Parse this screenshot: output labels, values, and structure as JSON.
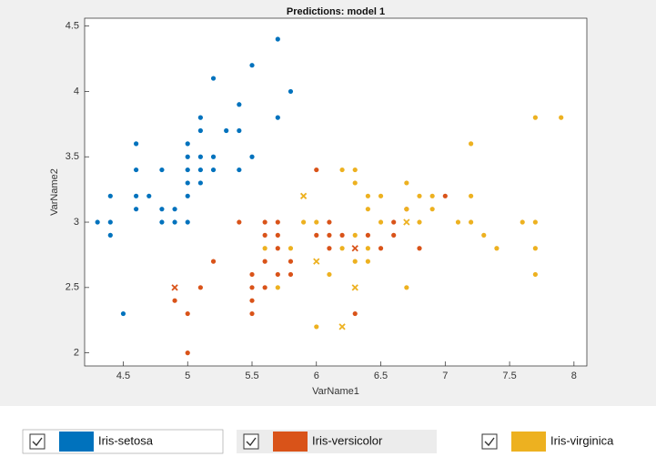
{
  "chart_data": {
    "type": "scatter",
    "title": "Predictions: model 1",
    "x_label": "VarName1",
    "y_label": "VarName2",
    "xlim": [
      4.2,
      8.1
    ],
    "ylim": [
      1.9,
      4.56
    ],
    "xticks": [
      4.5,
      5,
      5.5,
      6,
      6.5,
      7,
      7.5,
      8
    ],
    "yticks": [
      2,
      2.5,
      3,
      3.5,
      4,
      4.5
    ],
    "grid": false,
    "series": [
      {
        "name": "Iris-setosa",
        "color": "#0072bd",
        "x": [
          4.3,
          4.4,
          4.4,
          4.4,
          4.5,
          4.6,
          4.6,
          4.6,
          4.6,
          4.7,
          4.8,
          4.8,
          4.8,
          4.9,
          4.9,
          5.0,
          5.0,
          5.0,
          5.0,
          5.0,
          5.0,
          5.1,
          5.1,
          5.1,
          5.1,
          5.1,
          5.2,
          5.2,
          5.2,
          5.3,
          5.4,
          5.4,
          5.4,
          5.5,
          5.5,
          5.7,
          5.7,
          5.8
        ],
        "values": [
          3.0,
          3.0,
          2.9,
          3.2,
          2.3,
          3.1,
          3.2,
          3.4,
          3.6,
          3.2,
          3.0,
          3.1,
          3.4,
          3.0,
          3.1,
          3.0,
          3.2,
          3.3,
          3.4,
          3.5,
          3.6,
          3.3,
          3.4,
          3.5,
          3.7,
          3.8,
          3.4,
          3.5,
          4.1,
          3.7,
          3.4,
          3.7,
          3.9,
          3.5,
          4.2,
          3.8,
          4.4,
          4.0
        ],
        "markers": [
          "dot",
          "dot",
          "dot",
          "dot",
          "dot",
          "dot",
          "dot",
          "dot",
          "dot",
          "dot",
          "dot",
          "dot",
          "dot",
          "dot",
          "dot",
          "dot",
          "dot",
          "dot",
          "dot",
          "dot",
          "dot",
          "dot",
          "dot",
          "dot",
          "dot",
          "dot",
          "dot",
          "dot",
          "dot",
          "dot",
          "dot",
          "dot",
          "dot",
          "dot",
          "dot",
          "dot",
          "dot",
          "dot"
        ]
      },
      {
        "name": "Iris-versicolor",
        "color": "#d95319",
        "x": [
          4.9,
          5.0,
          5.0,
          5.1,
          5.2,
          5.4,
          5.5,
          5.5,
          5.5,
          5.5,
          5.6,
          5.6,
          5.6,
          5.6,
          5.7,
          5.7,
          5.7,
          5.7,
          5.8,
          5.8,
          6.0,
          6.0,
          6.1,
          6.1,
          6.1,
          6.2,
          6.3,
          6.4,
          6.5,
          6.6,
          6.6,
          6.7,
          6.8,
          7.0,
          4.9,
          6.3
        ],
        "values": [
          2.4,
          2.0,
          2.3,
          2.5,
          2.7,
          3.0,
          2.3,
          2.4,
          2.5,
          2.6,
          2.5,
          2.7,
          2.9,
          3.0,
          2.6,
          2.8,
          2.9,
          3.0,
          2.6,
          2.7,
          2.9,
          3.4,
          2.8,
          2.9,
          3.0,
          2.9,
          2.3,
          2.9,
          2.8,
          2.9,
          3.0,
          3.1,
          2.8,
          3.2,
          2.5,
          2.8
        ],
        "markers": [
          "dot",
          "dot",
          "dot",
          "dot",
          "dot",
          "dot",
          "dot",
          "dot",
          "dot",
          "dot",
          "dot",
          "dot",
          "dot",
          "dot",
          "dot",
          "dot",
          "dot",
          "dot",
          "dot",
          "dot",
          "dot",
          "dot",
          "dot",
          "dot",
          "dot",
          "dot",
          "dot",
          "dot",
          "dot",
          "dot",
          "dot",
          "dot",
          "dot",
          "dot",
          "x",
          "x"
        ]
      },
      {
        "name": "Iris-virginica",
        "color": "#edb120",
        "x": [
          5.6,
          5.7,
          5.8,
          5.9,
          6.0,
          6.0,
          6.1,
          6.2,
          6.2,
          6.3,
          6.3,
          6.3,
          6.3,
          6.4,
          6.4,
          6.4,
          6.4,
          6.5,
          6.5,
          6.7,
          6.7,
          6.7,
          6.8,
          6.8,
          6.9,
          6.9,
          7.1,
          7.2,
          7.2,
          7.2,
          7.3,
          7.4,
          7.6,
          7.7,
          7.7,
          7.7,
          7.7,
          7.9,
          5.9,
          6.0,
          6.3,
          6.7,
          6.2
        ],
        "values": [
          2.8,
          2.5,
          2.8,
          3.0,
          2.2,
          3.0,
          2.6,
          2.8,
          3.4,
          2.7,
          2.9,
          3.3,
          3.4,
          2.7,
          2.8,
          3.1,
          3.2,
          3.0,
          3.2,
          2.5,
          3.1,
          3.3,
          3.0,
          3.2,
          3.1,
          3.2,
          3.0,
          3.0,
          3.2,
          3.6,
          2.9,
          2.8,
          3.0,
          2.6,
          2.8,
          3.0,
          3.8,
          3.8,
          3.2,
          2.7,
          2.5,
          3.0,
          2.2
        ],
        "markers": [
          "dot",
          "dot",
          "dot",
          "dot",
          "dot",
          "dot",
          "dot",
          "dot",
          "dot",
          "dot",
          "dot",
          "dot",
          "dot",
          "dot",
          "dot",
          "dot",
          "dot",
          "dot",
          "dot",
          "dot",
          "dot",
          "dot",
          "dot",
          "dot",
          "dot",
          "dot",
          "dot",
          "dot",
          "dot",
          "dot",
          "dot",
          "dot",
          "dot",
          "dot",
          "dot",
          "dot",
          "dot",
          "dot",
          "x",
          "x",
          "x",
          "x",
          "x"
        ]
      }
    ]
  }
}
